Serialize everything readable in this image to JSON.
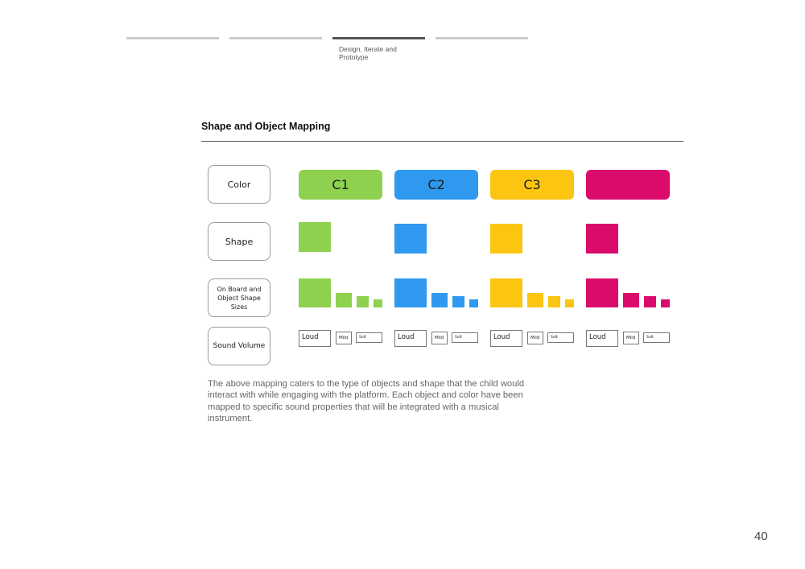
{
  "progress": {
    "steps": [
      "",
      "",
      "Design, Iterate and Prototype",
      ""
    ],
    "active_index": 2
  },
  "section_title": "Shape and Object Mapping",
  "row_labels": {
    "color": "Color",
    "shape": "Shape",
    "sizes_line1": "On Board and",
    "sizes_line2": "Object Shape Sizes",
    "volume": "Sound Volume"
  },
  "columns": [
    {
      "label": "C1",
      "color": "#8dd14f",
      "volume": {
        "loud": "Loud",
        "mild": "Mild",
        "soft": "Soft"
      }
    },
    {
      "label": "C2",
      "color": "#2e99ee",
      "volume": {
        "loud": "Loud",
        "mild": "Mild",
        "soft": "Soft"
      }
    },
    {
      "label": "C3",
      "color": "#fbc512",
      "volume": {
        "loud": "Loud",
        "mild": "Mild",
        "soft": "Soft"
      }
    },
    {
      "label": "",
      "color": "#db0b6c",
      "volume": {
        "loud": "Loud",
        "mild": "Mild",
        "soft": "Soft"
      }
    }
  ],
  "description": "The above mapping caters to the type of objects and shape that the child would interact with while engaging with the platform. Each object and color have been mapped to specific sound properties that will be integrated with a musical instrument.",
  "page_number": "40"
}
